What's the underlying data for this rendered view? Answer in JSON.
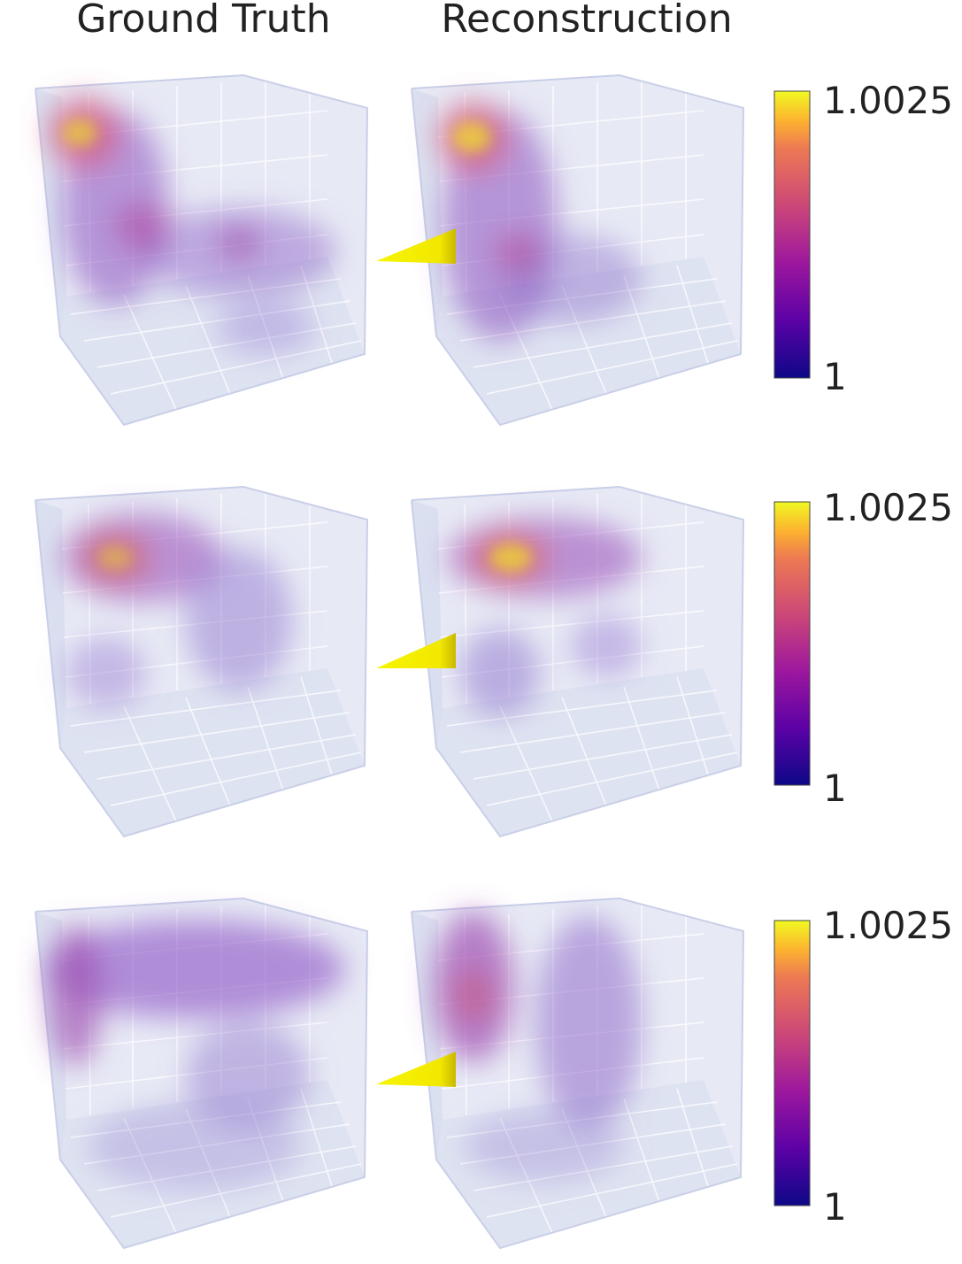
{
  "columns": [
    "Ground Truth",
    "Reconstruction"
  ],
  "rows": [
    {
      "colorbar": {
        "ticks": [
          1,
          1.0025
        ]
      }
    },
    {
      "colorbar": {
        "ticks": [
          1,
          1.0025
        ]
      }
    },
    {
      "colorbar": {
        "ticks": [
          1,
          1.0025
        ]
      }
    }
  ]
}
